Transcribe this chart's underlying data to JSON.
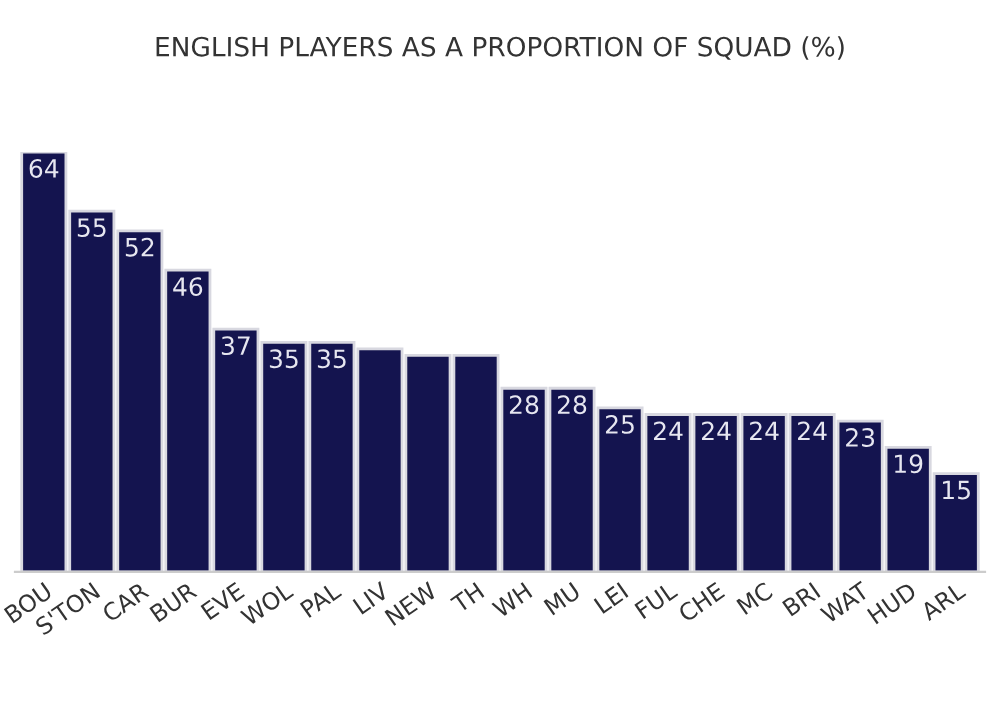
{
  "chart_data": {
    "type": "bar",
    "title": "ENGLISH PLAYERS AS A PROPORTION OF SQUAD (%)",
    "categories": [
      "BOU",
      "S'TON",
      "CAR",
      "BUR",
      "EVE",
      "WOL",
      "PAL",
      "LIV",
      "NEW",
      "TH",
      "WH",
      "MU",
      "LEI",
      "FUL",
      "CHE",
      "MC",
      "BRI",
      "WAT",
      "HUD",
      "ARL"
    ],
    "values": [
      64,
      55,
      52,
      46,
      37,
      35,
      35,
      34,
      33,
      33,
      28,
      28,
      25,
      24,
      24,
      24,
      24,
      23,
      19,
      15
    ],
    "value_labels": [
      "64",
      "55",
      "52",
      "46",
      "37",
      "35",
      "35",
      null,
      null,
      null,
      "28",
      "28",
      "25",
      "24",
      "24",
      "24",
      "24",
      "23",
      "19",
      "15"
    ],
    "color": "#14144f",
    "grid": false,
    "legend": false
  }
}
